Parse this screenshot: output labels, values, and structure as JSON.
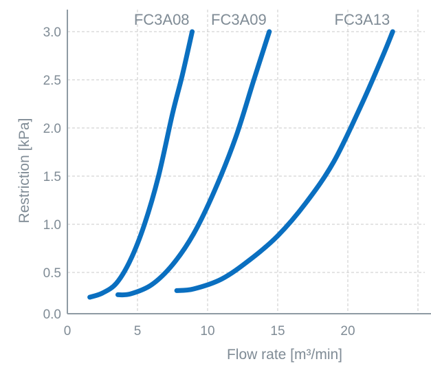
{
  "chart_data": {
    "type": "line",
    "xlabel": "Flow rate [m³/min]",
    "ylabel": "Restriction [kPa]",
    "xlim": [
      0,
      25
    ],
    "ylim": [
      0,
      3.0
    ],
    "x_ticks": [
      0,
      5,
      10,
      15,
      20
    ],
    "y_ticks": [
      0.0,
      0.5,
      1.0,
      1.5,
      2.0,
      2.5,
      3.0
    ],
    "x_tick_labels": [
      "0",
      "5",
      "10",
      "15",
      "20"
    ],
    "y_tick_labels": [
      "0.0",
      "0.5",
      "1.0",
      "1.5",
      "2.0",
      "2.5",
      "3.0"
    ],
    "grid": true,
    "series": [
      {
        "name": "FC3A08",
        "x": [
          1.6,
          2.5,
          3.5,
          4.5,
          5.5,
          6.5,
          7.5,
          8.2,
          8.9
        ],
        "y": [
          0.2,
          0.25,
          0.37,
          0.63,
          1.0,
          1.5,
          2.15,
          2.55,
          3.0
        ]
      },
      {
        "name": "FC3A09",
        "x": [
          3.6,
          4.5,
          6.0,
          7.5,
          9.0,
          10.5,
          12.0,
          13.3,
          14.4
        ],
        "y": [
          0.23,
          0.24,
          0.35,
          0.58,
          0.9,
          1.35,
          1.9,
          2.5,
          3.0
        ]
      },
      {
        "name": "FC3A13",
        "x": [
          7.8,
          9.0,
          11.0,
          13.0,
          15.0,
          17.0,
          19.0,
          21.0,
          22.5,
          23.2
        ],
        "y": [
          0.28,
          0.3,
          0.42,
          0.63,
          0.88,
          1.22,
          1.65,
          2.25,
          2.75,
          3.0
        ]
      }
    ],
    "color": "#0a6fc0"
  }
}
